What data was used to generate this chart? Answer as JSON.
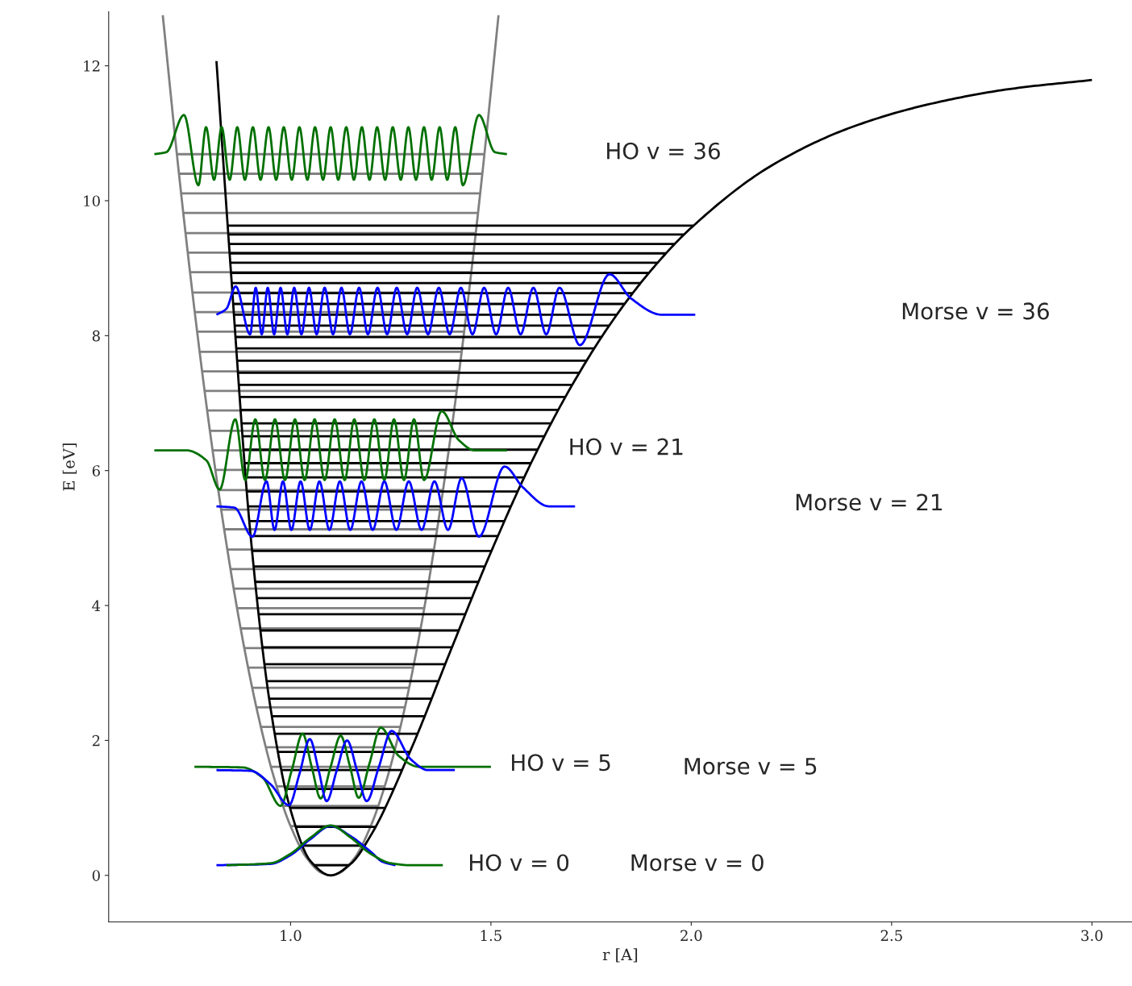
{
  "chart_data": {
    "type": "line",
    "xlabel": "r [A]",
    "ylabel": "E [eV]",
    "xlim": [
      0.546,
      3.1
    ],
    "ylim": [
      -0.69,
      12.8
    ],
    "xticks": [
      {
        "value": 1,
        "label": "1.0"
      },
      {
        "value": 1.5,
        "label": "1.5"
      },
      {
        "value": 2,
        "label": "2.0"
      },
      {
        "value": 2.5,
        "label": "2.5"
      },
      {
        "value": 3,
        "label": "3.0"
      }
    ],
    "yticks": [
      0,
      2,
      4,
      6,
      8,
      10,
      12
    ],
    "legend": false,
    "marker": "none",
    "line_style": "solid",
    "annotations": [
      "HO v = 36",
      "Morse v = 36",
      "HO v = 21",
      "Morse v = 21",
      "HO v = 5",
      "Morse v = 5",
      "HO v = 0",
      "Morse v = 0"
    ],
    "series": [
      {
        "color": "#808080",
        "x": [
          1.055,
          1.145,
          null,
          1.022,
          1.178,
          null,
          1.0,
          1.2,
          null,
          0.981,
          1.219,
          null,
          0.965,
          1.235,
          null,
          0.951,
          1.249,
          null,
          0.938,
          1.262,
          null,
          0.926,
          1.274,
          null,
          0.915,
          1.285,
          null,
          0.904,
          1.296,
          null,
          0.894,
          1.306,
          null,
          0.885,
          1.315,
          null,
          0.875,
          1.325,
          null,
          0.867,
          1.333,
          null,
          0.858,
          1.342,
          null,
          0.85,
          1.35,
          null,
          0.842,
          1.358,
          null,
          0.834,
          1.366,
          null,
          0.827,
          1.373,
          null,
          0.82,
          1.38,
          null,
          0.812,
          1.388,
          null,
          0.805,
          1.395,
          null,
          0.799,
          1.401,
          null,
          0.792,
          1.408,
          null,
          0.786,
          1.414,
          null,
          0.779,
          1.421,
          null,
          0.773,
          1.427,
          null,
          0.767,
          1.433,
          null,
          0.761,
          1.439,
          null,
          0.755,
          1.445,
          null,
          0.749,
          1.451,
          null,
          0.743,
          1.457,
          null,
          0.738,
          1.462,
          null,
          0.732,
          1.468,
          null,
          0.727,
          1.473,
          null,
          0.722,
          1.479,
          null,
          0.716,
          1.484
        ],
        "values": [
          0.15,
          0.15,
          null,
          0.44,
          0.44,
          null,
          0.73,
          0.73,
          null,
          1.03,
          1.03,
          null,
          1.32,
          1.32,
          null,
          1.61,
          1.61,
          null,
          1.9,
          1.9,
          null,
          2.2,
          2.2,
          null,
          2.49,
          2.49,
          null,
          2.78,
          2.78,
          null,
          3.08,
          3.08,
          null,
          3.37,
          3.37,
          null,
          3.66,
          3.66,
          null,
          3.96,
          3.96,
          null,
          4.25,
          4.25,
          null,
          4.54,
          4.54,
          null,
          4.83,
          4.83,
          null,
          5.13,
          5.13,
          null,
          5.42,
          5.42,
          null,
          5.71,
          5.71,
          null,
          6.01,
          6.01,
          null,
          6.3,
          6.3,
          null,
          6.59,
          6.59,
          null,
          6.89,
          6.89,
          null,
          7.18,
          7.18,
          null,
          7.47,
          7.47,
          null,
          7.76,
          7.76,
          null,
          8.06,
          8.06,
          null,
          8.35,
          8.35,
          null,
          8.64,
          8.64,
          null,
          8.94,
          8.94,
          null,
          9.23,
          9.23,
          null,
          9.52,
          9.52,
          null,
          9.82,
          9.82,
          null,
          10.11,
          10.11,
          null,
          10.4,
          10.4,
          null,
          10.69,
          10.69
        ]
      },
      {
        "color": "#808080",
        "x": [
          0.681,
          0.72,
          0.76,
          0.8,
          0.84,
          0.88,
          0.92,
          0.96,
          1.0,
          1.04,
          1.08,
          1.1,
          1.12,
          1.16,
          1.2,
          1.24,
          1.28,
          1.32,
          1.36,
          1.4,
          1.44,
          1.48,
          1.519
        ],
        "values": [
          12.75,
          10.48,
          8.39,
          6.53,
          4.91,
          3.51,
          2.35,
          1.42,
          0.73,
          0.26,
          0.03,
          0,
          0.03,
          0.26,
          0.73,
          1.42,
          2.35,
          3.51,
          4.91,
          6.53,
          8.39,
          10.48,
          12.75
        ]
      },
      {
        "color": "#000000",
        "x": [
          1.058,
          1.147,
          null,
          1.03,
          1.185,
          null,
          1.012,
          1.213,
          null,
          0.998,
          1.237,
          null,
          0.987,
          1.258,
          null,
          0.977,
          1.279,
          null,
          0.968,
          1.298,
          null,
          0.96,
          1.317,
          null,
          0.953,
          1.335,
          null,
          0.947,
          1.352,
          null,
          0.941,
          1.369,
          null,
          0.935,
          1.386,
          null,
          0.93,
          1.403,
          null,
          0.925,
          1.419,
          null,
          0.92,
          1.436,
          null,
          0.916,
          1.452,
          null,
          0.912,
          1.468,
          null,
          0.908,
          1.485,
          null,
          0.904,
          1.501,
          null,
          0.9,
          1.517,
          null,
          0.897,
          1.534,
          null,
          0.894,
          1.55,
          null,
          0.89,
          1.566,
          null,
          0.888,
          1.583,
          null,
          0.885,
          1.6,
          null,
          0.882,
          1.617,
          null,
          0.879,
          1.634,
          null,
          0.877,
          1.651,
          null,
          0.874,
          1.668,
          null,
          0.872,
          1.685,
          null,
          0.87,
          1.703,
          null,
          0.868,
          1.721,
          null,
          0.865,
          1.739,
          null,
          0.863,
          1.757,
          null,
          0.861,
          1.776,
          null,
          0.86,
          1.795,
          null,
          0.858,
          1.814,
          null,
          0.856,
          1.834,
          null,
          0.854,
          1.854,
          null,
          0.853,
          1.874,
          null,
          0.851,
          1.895,
          null,
          0.85,
          1.915,
          null,
          0.848,
          1.937,
          null,
          0.847,
          1.959,
          null,
          0.845,
          1.981,
          null,
          0.844,
          2.005
        ],
        "values": [
          0.15,
          0.15,
          null,
          0.44,
          0.44,
          null,
          0.72,
          0.72,
          null,
          1.0,
          1.0,
          null,
          1.28,
          1.28,
          null,
          1.56,
          1.56,
          null,
          1.83,
          1.83,
          null,
          2.1,
          2.1,
          null,
          2.36,
          2.36,
          null,
          2.62,
          2.62,
          null,
          2.88,
          2.88,
          null,
          3.13,
          3.13,
          null,
          3.38,
          3.38,
          null,
          3.63,
          3.63,
          null,
          3.87,
          3.87,
          null,
          4.11,
          4.11,
          null,
          4.35,
          4.35,
          null,
          4.58,
          4.58,
          null,
          4.81,
          4.81,
          null,
          5.03,
          5.03,
          null,
          5.25,
          5.25,
          null,
          5.47,
          5.47,
          null,
          5.69,
          5.69,
          null,
          5.9,
          5.9,
          null,
          6.11,
          6.11,
          null,
          6.31,
          6.31,
          null,
          6.51,
          6.51,
          null,
          6.7,
          6.7,
          null,
          6.9,
          6.9,
          null,
          7.09,
          7.09,
          null,
          7.27,
          7.27,
          null,
          7.45,
          7.45,
          null,
          7.63,
          7.63,
          null,
          7.81,
          7.81,
          null,
          7.98,
          7.98,
          null,
          8.15,
          8.15,
          null,
          8.31,
          8.31,
          null,
          8.47,
          8.47,
          null,
          8.63,
          8.63,
          null,
          8.78,
          8.78,
          null,
          8.93,
          8.93,
          null,
          9.08,
          9.08,
          null,
          9.22,
          9.22,
          null,
          9.36,
          9.36,
          null,
          9.5,
          9.5,
          null,
          9.63,
          9.63
        ]
      },
      {
        "color": "#000000",
        "x": [
          0.815,
          0.85,
          0.9,
          0.95,
          1.0,
          1.05,
          1.1,
          1.15,
          1.2,
          1.3,
          1.4,
          1.5,
          1.6,
          1.7,
          1.8,
          1.9,
          2.0,
          2.2,
          2.4,
          2.6,
          2.8,
          3.0
        ],
        "values": [
          12.07,
          9.04,
          5.05,
          2.48,
          0.97,
          0.21,
          0,
          0.17,
          0.59,
          1.86,
          3.34,
          4.79,
          6.11,
          7.24,
          8.19,
          8.97,
          9.6,
          10.52,
          11.09,
          11.44,
          11.66,
          11.79
        ]
      },
      {
        "color": "#0000ff",
        "x": [
          0.815,
          0.95,
          1.0,
          1.05,
          1.1,
          1.15,
          1.2,
          1.23,
          1.262
        ],
        "values": [
          0.15,
          0.17,
          0.3,
          0.54,
          0.73,
          0.58,
          0.35,
          0.2,
          0.15
        ]
      },
      {
        "color": "#007000",
        "x": [
          0.84,
          0.95,
          1.0,
          1.05,
          1.1,
          1.15,
          1.2,
          1.25,
          1.3,
          1.38
        ],
        "values": [
          0.15,
          0.18,
          0.32,
          0.56,
          0.74,
          0.56,
          0.32,
          0.18,
          0.15,
          0.15
        ]
      },
      {
        "color": "#007000",
        "x": [
          0.76,
          0.88,
          0.93,
          0.975,
          1.003,
          1.03,
          1.053,
          1.075,
          1.1,
          1.125,
          1.148,
          1.17,
          1.197,
          1.225,
          1.27,
          1.32,
          1.5
        ],
        "values": [
          1.61,
          1.6,
          1.45,
          1.03,
          1.56,
          2.1,
          1.6,
          1.14,
          1.61,
          2.07,
          1.62,
          1.15,
          1.66,
          2.19,
          1.77,
          1.61,
          1.61
        ]
      },
      {
        "color": "#0000ff",
        "x": [
          0.815,
          0.9,
          0.95,
          0.996,
          1.022,
          1.048,
          1.07,
          1.09,
          1.115,
          1.141,
          1.166,
          1.19,
          1.22,
          1.252,
          1.3,
          1.343,
          1.41
        ],
        "values": [
          1.56,
          1.55,
          1.35,
          1.04,
          1.5,
          2.02,
          1.56,
          1.1,
          1.55,
          2.0,
          1.55,
          1.1,
          1.6,
          2.14,
          1.72,
          1.56,
          1.56
        ]
      },
      {
        "color": "#007000",
        "x": [
          0.66,
          0.74,
          0.79,
          0.823,
          0.862,
          0.887,
          0.912,
          0.936,
          0.961,
          0.986,
          1.011,
          1.035,
          1.06,
          1.085,
          1.11,
          1.135,
          1.159,
          1.184,
          1.209,
          1.234,
          1.258,
          1.283,
          1.308,
          1.333,
          1.377,
          1.42,
          1.46,
          1.54
        ],
        "values": [
          6.3,
          6.3,
          6.15,
          5.72,
          6.76,
          5.86,
          6.76,
          5.86,
          6.76,
          5.86,
          6.76,
          5.86,
          6.76,
          5.86,
          6.76,
          5.86,
          6.76,
          5.86,
          6.76,
          5.86,
          6.76,
          5.86,
          6.76,
          5.86,
          6.88,
          6.45,
          6.3,
          6.3
        ]
      },
      {
        "color": "#0000ff",
        "x": [
          0.815,
          0.86,
          0.905,
          0.94,
          0.96,
          0.981,
          1.002,
          1.025,
          1.048,
          1.072,
          1.097,
          1.123,
          1.149,
          1.177,
          1.205,
          1.234,
          1.264,
          1.295,
          1.327,
          1.359,
          1.393,
          1.427,
          1.47,
          1.534,
          1.58,
          1.645,
          1.71
        ],
        "values": [
          5.47,
          5.45,
          5.02,
          5.84,
          5.12,
          5.84,
          5.12,
          5.84,
          5.12,
          5.84,
          5.12,
          5.84,
          5.12,
          5.84,
          5.12,
          5.84,
          5.12,
          5.84,
          5.12,
          5.84,
          5.12,
          5.89,
          5.02,
          6.06,
          5.75,
          5.47,
          5.47
        ]
      },
      {
        "color": "#007000",
        "x": [
          0.66,
          0.69,
          0.734,
          0.77,
          0.789,
          0.809,
          0.828,
          0.848,
          0.867,
          0.886,
          0.906,
          0.925,
          0.945,
          0.964,
          0.983,
          1.003,
          1.022,
          1.042,
          1.061,
          1.081,
          1.1,
          1.119,
          1.139,
          1.158,
          1.178,
          1.197,
          1.216,
          1.236,
          1.255,
          1.275,
          1.294,
          1.313,
          1.333,
          1.352,
          1.372,
          1.391,
          1.411,
          1.43,
          1.47,
          1.51,
          1.54
        ],
        "values": [
          10.69,
          10.72,
          11.27,
          10.23,
          11.09,
          10.31,
          11.09,
          10.31,
          11.09,
          10.31,
          11.09,
          10.31,
          11.09,
          10.31,
          11.09,
          10.31,
          11.09,
          10.31,
          11.09,
          10.31,
          11.09,
          10.31,
          11.09,
          10.31,
          11.09,
          10.31,
          11.09,
          10.31,
          11.09,
          10.31,
          11.09,
          10.31,
          11.09,
          10.31,
          11.09,
          10.31,
          11.09,
          10.23,
          11.27,
          10.72,
          10.69
        ]
      },
      {
        "color": "#0000ff",
        "x": [
          0.815,
          0.84,
          0.863,
          0.899,
          0.913,
          0.928,
          0.943,
          0.959,
          0.975,
          0.992,
          1.009,
          1.027,
          1.046,
          1.065,
          1.085,
          1.106,
          1.127,
          1.148,
          1.171,
          1.193,
          1.217,
          1.241,
          1.265,
          1.291,
          1.316,
          1.343,
          1.37,
          1.397,
          1.425,
          1.454,
          1.483,
          1.513,
          1.543,
          1.574,
          1.606,
          1.638,
          1.671,
          1.722,
          1.796,
          1.85,
          1.927,
          2.01
        ],
        "values": [
          8.31,
          8.4,
          8.73,
          8.02,
          8.71,
          8.02,
          8.71,
          8.02,
          8.71,
          8.02,
          8.71,
          8.02,
          8.71,
          8.02,
          8.71,
          8.02,
          8.71,
          8.02,
          8.71,
          8.02,
          8.71,
          8.02,
          8.71,
          8.02,
          8.71,
          8.02,
          8.71,
          8.02,
          8.71,
          8.02,
          8.71,
          8.02,
          8.71,
          8.02,
          8.71,
          8.02,
          8.71,
          7.86,
          8.91,
          8.55,
          8.31,
          8.31
        ]
      }
    ]
  }
}
